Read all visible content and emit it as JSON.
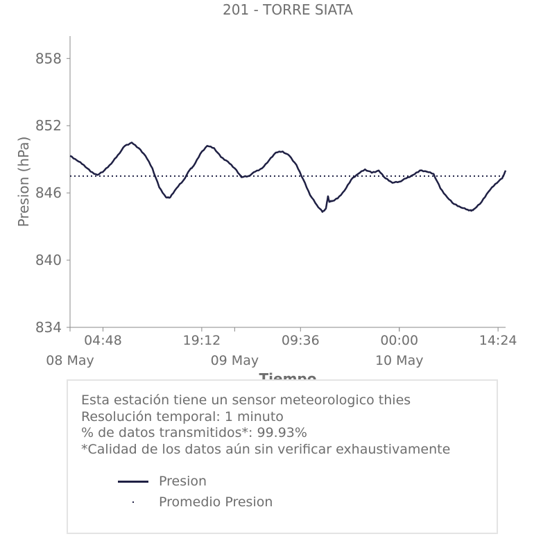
{
  "chart_data": {
    "type": "line",
    "title": "201 - TORRE SIATA",
    "xlabel": "Tiempo",
    "ylabel": "Presion (hPa)",
    "ylim": [
      834,
      860
    ],
    "yticks": [
      834,
      840,
      846,
      852,
      858
    ],
    "xrange_hours": [
      0,
      63.5
    ],
    "xticks": [
      {
        "label": "04:48",
        "hour": 4.8
      },
      {
        "label": "19:12",
        "hour": 19.2
      },
      {
        "label": "09:36",
        "hour": 33.6
      },
      {
        "label": "00:00",
        "hour": 48.0
      },
      {
        "label": "14:24",
        "hour": 62.4
      }
    ],
    "day_labels": [
      {
        "label": "08 May",
        "hour": 0
      },
      {
        "label": "09 May",
        "hour": 24
      },
      {
        "label": "10 May",
        "hour": 48
      }
    ],
    "series": [
      {
        "name": "Presion",
        "color": "#1f2044",
        "style": "solid",
        "points": [
          [
            0.0,
            849.3
          ],
          [
            1.0,
            848.9
          ],
          [
            2.0,
            848.5
          ],
          [
            3.0,
            847.9
          ],
          [
            4.0,
            847.6
          ],
          [
            5.0,
            848.0
          ],
          [
            6.0,
            848.6
          ],
          [
            7.0,
            849.4
          ],
          [
            8.0,
            850.2
          ],
          [
            9.0,
            850.5
          ],
          [
            10.0,
            850.0
          ],
          [
            11.0,
            849.3
          ],
          [
            12.0,
            848.2
          ],
          [
            13.0,
            846.5
          ],
          [
            14.0,
            845.6
          ],
          [
            14.6,
            845.6
          ],
          [
            15.5,
            846.4
          ],
          [
            16.5,
            847.1
          ],
          [
            17.5,
            848.1
          ],
          [
            18.0,
            848.4
          ],
          [
            19.0,
            849.5
          ],
          [
            20.0,
            850.2
          ],
          [
            21.0,
            850.0
          ],
          [
            22.0,
            849.2
          ],
          [
            23.0,
            848.8
          ],
          [
            24.0,
            848.2
          ],
          [
            25.0,
            847.4
          ],
          [
            26.0,
            847.5
          ],
          [
            27.0,
            847.9
          ],
          [
            28.0,
            848.2
          ],
          [
            29.0,
            848.9
          ],
          [
            30.0,
            849.6
          ],
          [
            31.0,
            849.7
          ],
          [
            32.0,
            849.3
          ],
          [
            33.0,
            848.5
          ],
          [
            34.0,
            847.2
          ],
          [
            35.0,
            845.8
          ],
          [
            36.0,
            844.9
          ],
          [
            36.8,
            844.3
          ],
          [
            37.3,
            844.6
          ],
          [
            37.6,
            845.7
          ],
          [
            37.8,
            845.2
          ],
          [
            38.3,
            845.3
          ],
          [
            39.0,
            845.5
          ],
          [
            40.0,
            846.2
          ],
          [
            41.0,
            847.2
          ],
          [
            42.0,
            847.7
          ],
          [
            43.0,
            848.1
          ],
          [
            44.0,
            847.8
          ],
          [
            45.0,
            848.0
          ],
          [
            46.0,
            847.3
          ],
          [
            47.0,
            846.9
          ],
          [
            48.0,
            847.0
          ],
          [
            49.0,
            847.3
          ],
          [
            50.0,
            847.6
          ],
          [
            51.0,
            848.0
          ],
          [
            52.0,
            847.9
          ],
          [
            53.0,
            847.7
          ],
          [
            54.0,
            846.4
          ],
          [
            55.0,
            845.6
          ],
          [
            56.0,
            845.0
          ],
          [
            57.0,
            844.7
          ],
          [
            58.0,
            844.5
          ],
          [
            58.5,
            844.4
          ],
          [
            59.0,
            844.6
          ],
          [
            60.0,
            845.2
          ],
          [
            61.0,
            846.1
          ],
          [
            62.0,
            846.8
          ],
          [
            63.0,
            847.3
          ],
          [
            63.5,
            848.0
          ]
        ]
      },
      {
        "name": "Promedio Presion",
        "color": "#1f2044",
        "style": "dotted",
        "value": 847.5
      }
    ]
  },
  "info": {
    "line1": "Esta estación tiene un sensor meteorologico thies",
    "line2": "Resolución temporal: 1 minuto",
    "line3": "% de datos transmitidos*: 99.93%",
    "line4": "*Calidad de los datos aún sin verificar exhaustivamente"
  },
  "legend": {
    "item1": "Presion",
    "item2": "Promedio Presion"
  }
}
